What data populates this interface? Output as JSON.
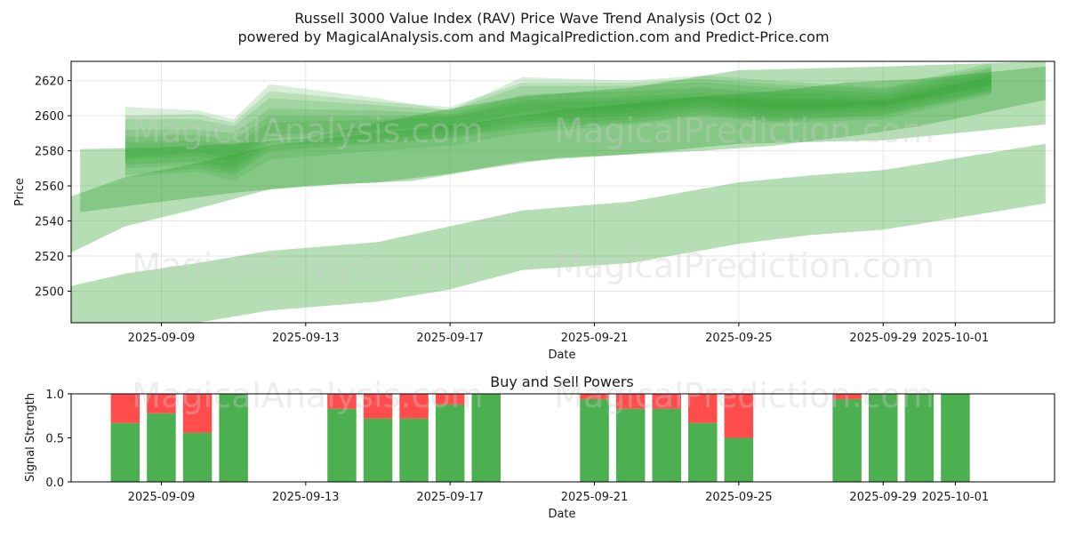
{
  "title": "Russell 3000 Value Index (RAV) Price Wave Trend Analysis (Oct 02 )",
  "subtitle": "powered by MagicalAnalysis.com and MagicalPrediction.com and Predict-Price.com",
  "watermarks": [
    "MagicalAnalysis.com",
    "MagicalPrediction.com"
  ],
  "colors": {
    "band": "#2ca02c",
    "buy": "#4caf50",
    "sell": "#ff4d4d",
    "grid": "#e6e6e6"
  },
  "chart_data": [
    {
      "type": "area",
      "title": "",
      "xlabel": "Date",
      "ylabel": "Price",
      "ylim": [
        2482,
        2631
      ],
      "xlim": [
        "2025-09-06T12:00",
        "2025-10-03T18:00"
      ],
      "grid": true,
      "x_ticks": [
        "2025-09-09",
        "2025-09-13",
        "2025-09-17",
        "2025-09-21",
        "2025-09-25",
        "2025-09-29",
        "2025-10-01"
      ],
      "y_ticks": [
        2500,
        2520,
        2540,
        2560,
        2580,
        2600,
        2620
      ],
      "series": [
        {
          "name": "wave-upper",
          "opacity": 0.35,
          "x": [
            "2025-09-06T18:00",
            "2025-09-09",
            "2025-09-11",
            "2025-09-13",
            "2025-09-15",
            "2025-09-17",
            "2025-09-19",
            "2025-09-22",
            "2025-09-25",
            "2025-09-29",
            "2025-10-03T12:00"
          ],
          "lower": [
            2545,
            2551,
            2556,
            2560,
            2562,
            2567,
            2574,
            2578,
            2584,
            2586,
            2595
          ],
          "upper": [
            2581,
            2582,
            2584,
            2587,
            2596,
            2604,
            2611,
            2616,
            2626,
            2628,
            2631
          ]
        },
        {
          "name": "wave-wide",
          "opacity": 0.35,
          "x": [
            "2025-09-06T12:00",
            "2025-09-08",
            "2025-09-10",
            "2025-09-12",
            "2025-09-14",
            "2025-09-16",
            "2025-09-18",
            "2025-09-20",
            "2025-09-22",
            "2025-09-24",
            "2025-09-26",
            "2025-09-28",
            "2025-09-30",
            "2025-10-03T12:00"
          ],
          "lower": [
            2522,
            2537,
            2547,
            2558,
            2561,
            2563,
            2570,
            2576,
            2578,
            2580,
            2583,
            2588,
            2594,
            2609
          ],
          "upper": [
            2554,
            2565,
            2573,
            2583,
            2588,
            2592,
            2597,
            2603,
            2607,
            2611,
            2614,
            2619,
            2621,
            2628
          ]
        },
        {
          "name": "wave-lower",
          "opacity": 0.35,
          "x": [
            "2025-09-06T12:00",
            "2025-09-08",
            "2025-09-10",
            "2025-09-12",
            "2025-09-15",
            "2025-09-17",
            "2025-09-19",
            "2025-09-22",
            "2025-09-25",
            "2025-09-27",
            "2025-09-29",
            "2025-10-03T12:00"
          ],
          "lower": [
            2476,
            2478,
            2482,
            2489,
            2494,
            2501,
            2512,
            2516,
            2527,
            2532,
            2535,
            2550
          ],
          "upper": [
            2503,
            2510,
            2516,
            2523,
            2528,
            2537,
            2546,
            2551,
            2562,
            2566,
            2569,
            2584
          ]
        },
        {
          "name": "wave-core-1",
          "opacity": 0.18,
          "x": [
            "2025-09-08",
            "2025-09-10",
            "2025-09-11",
            "2025-09-12",
            "2025-09-15",
            "2025-09-17",
            "2025-09-19",
            "2025-09-22",
            "2025-09-24",
            "2025-09-26",
            "2025-09-29",
            "2025-10-02"
          ],
          "lower": [
            2565,
            2568,
            2563,
            2575,
            2580,
            2583,
            2590,
            2595,
            2600,
            2596,
            2598,
            2612
          ],
          "upper": [
            2605,
            2603,
            2598,
            2618,
            2610,
            2603,
            2622,
            2620,
            2623,
            2620,
            2616,
            2630
          ]
        },
        {
          "name": "wave-core-2",
          "opacity": 0.18,
          "x": [
            "2025-09-08",
            "2025-09-10",
            "2025-09-11",
            "2025-09-12",
            "2025-09-15",
            "2025-09-17",
            "2025-09-19",
            "2025-09-22",
            "2025-09-24",
            "2025-09-26",
            "2025-09-29",
            "2025-10-02"
          ],
          "lower": [
            2570,
            2572,
            2568,
            2583,
            2585,
            2588,
            2595,
            2598,
            2603,
            2598,
            2601,
            2614
          ],
          "upper": [
            2598,
            2598,
            2594,
            2610,
            2606,
            2603,
            2617,
            2617,
            2619,
            2616,
            2613,
            2627
          ]
        },
        {
          "name": "wave-core-3",
          "opacity": 0.18,
          "x": [
            "2025-09-08",
            "2025-09-10",
            "2025-09-11",
            "2025-09-12",
            "2025-09-15",
            "2025-09-17",
            "2025-09-19",
            "2025-09-22",
            "2025-09-24",
            "2025-09-26",
            "2025-09-29",
            "2025-10-02"
          ],
          "lower": [
            2572,
            2574,
            2570,
            2585,
            2587,
            2590,
            2597,
            2600,
            2605,
            2600,
            2603,
            2615
          ],
          "upper": [
            2592,
            2592,
            2590,
            2604,
            2603,
            2601,
            2612,
            2614,
            2616,
            2613,
            2611,
            2625
          ]
        },
        {
          "name": "wave-core-4",
          "opacity": 0.18,
          "x": [
            "2025-09-08",
            "2025-09-10",
            "2025-09-11",
            "2025-09-12",
            "2025-09-15",
            "2025-09-17",
            "2025-09-19",
            "2025-09-22",
            "2025-09-24",
            "2025-09-26",
            "2025-09-29",
            "2025-10-02"
          ],
          "lower": [
            2575,
            2577,
            2574,
            2587,
            2590,
            2592,
            2600,
            2602,
            2607,
            2602,
            2605,
            2617
          ],
          "upper": [
            2588,
            2589,
            2586,
            2600,
            2600,
            2600,
            2609,
            2611,
            2613,
            2610,
            2609,
            2623
          ]
        },
        {
          "name": "wave-core-5",
          "opacity": 0.18,
          "x": [
            "2025-09-08",
            "2025-09-10",
            "2025-09-11",
            "2025-09-12",
            "2025-09-15",
            "2025-09-17",
            "2025-09-19",
            "2025-09-22",
            "2025-09-24",
            "2025-09-26",
            "2025-09-29",
            "2025-10-02"
          ],
          "lower": [
            2576,
            2579,
            2576,
            2589,
            2592,
            2594,
            2602,
            2604,
            2609,
            2604,
            2606,
            2618
          ],
          "upper": [
            2585,
            2586,
            2583,
            2596,
            2598,
            2599,
            2607,
            2609,
            2611,
            2608,
            2608,
            2622
          ]
        },
        {
          "name": "wave-core-6",
          "opacity": 0.18,
          "x": [
            "2025-09-08",
            "2025-09-10",
            "2025-09-11",
            "2025-09-12",
            "2025-09-15",
            "2025-09-17",
            "2025-09-19",
            "2025-09-22",
            "2025-09-24",
            "2025-09-26",
            "2025-09-29",
            "2025-10-02"
          ],
          "lower": [
            2566,
            2570,
            2566,
            2580,
            2584,
            2587,
            2593,
            2596,
            2601,
            2597,
            2600,
            2613
          ],
          "upper": [
            2600,
            2601,
            2596,
            2614,
            2608,
            2605,
            2619,
            2619,
            2621,
            2618,
            2615,
            2628
          ]
        }
      ]
    },
    {
      "type": "bar",
      "title": "Buy and Sell Powers",
      "xlabel": "Date",
      "ylabel": "Signal Strength",
      "ylim": [
        0,
        1
      ],
      "xlim": [
        "2025-09-06T12:00",
        "2025-10-03T18:00"
      ],
      "x_ticks": [
        "2025-09-09",
        "2025-09-13",
        "2025-09-17",
        "2025-09-21",
        "2025-09-25",
        "2025-09-29",
        "2025-10-01"
      ],
      "y_ticks": [
        "0.0",
        "0.5",
        "1.0"
      ],
      "dates": [
        "2025-09-08",
        "2025-09-09",
        "2025-09-10",
        "2025-09-11",
        "2025-09-14",
        "2025-09-15",
        "2025-09-16",
        "2025-09-17",
        "2025-09-18",
        "2025-09-21",
        "2025-09-22",
        "2025-09-23",
        "2025-09-24",
        "2025-09-25",
        "2025-09-28",
        "2025-09-29",
        "2025-09-30",
        "2025-10-01"
      ],
      "series": [
        {
          "name": "Buy",
          "values": [
            0.67,
            0.78,
            0.56,
            1.0,
            0.83,
            0.72,
            0.72,
            0.88,
            1.0,
            0.94,
            0.83,
            0.83,
            0.67,
            0.5,
            0.94,
            1.0,
            1.0,
            1.0
          ]
        },
        {
          "name": "Sell",
          "values": [
            0.33,
            0.22,
            0.44,
            0.0,
            0.17,
            0.28,
            0.28,
            0.12,
            0.0,
            0.06,
            0.17,
            0.17,
            0.33,
            0.5,
            0.06,
            0.0,
            0.0,
            0.0
          ]
        }
      ]
    }
  ]
}
